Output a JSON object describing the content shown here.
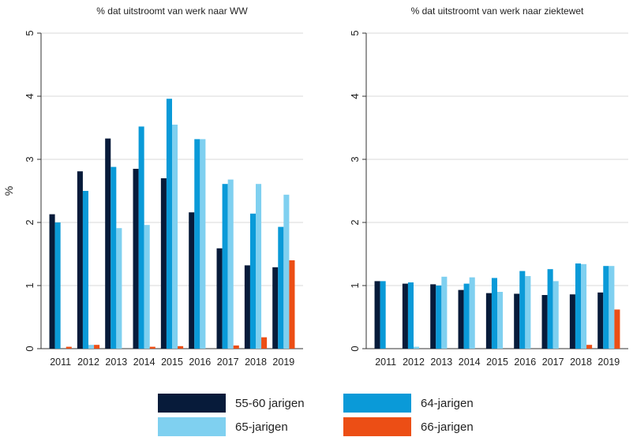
{
  "colors": {
    "series": [
      "#071b3a",
      "#0a9ad8",
      "#7fd0f0",
      "#ec4e15"
    ],
    "grid": "#d9d9d9",
    "axis": "#333333"
  },
  "chart_data": [
    {
      "type": "bar",
      "title": "% dat uitstroomt van werk naar WW",
      "ylabel": "%",
      "xlabel": "",
      "ylim": [
        0,
        5
      ],
      "yticks": [
        "0",
        "1",
        "2",
        "3",
        "4",
        "5"
      ],
      "grid": true,
      "categories": [
        "2011",
        "2012",
        "2013",
        "2014",
        "2015",
        "2016",
        "2017",
        "2018",
        "2019"
      ],
      "series": [
        {
          "name": "55-60 jarigen",
          "values": [
            2.13,
            2.81,
            3.33,
            2.85,
            2.7,
            2.16,
            1.59,
            1.32,
            1.29
          ]
        },
        {
          "name": "64-jarigen",
          "values": [
            2.0,
            2.5,
            2.88,
            3.52,
            3.96,
            3.32,
            2.61,
            2.14,
            1.93
          ]
        },
        {
          "name": "65-jarigen",
          "values": [
            0.0,
            0.06,
            1.91,
            1.96,
            3.55,
            3.32,
            2.68,
            2.61,
            2.44
          ]
        },
        {
          "name": "66-jarigen",
          "values": [
            0.03,
            0.06,
            0.0,
            0.03,
            0.04,
            0.0,
            0.05,
            0.18,
            1.4
          ]
        }
      ]
    },
    {
      "type": "bar",
      "title": "% dat uitstroomt van werk naar ziektewet",
      "ylabel": "",
      "xlabel": "",
      "ylim": [
        0,
        5
      ],
      "yticks": [
        "0",
        "1",
        "2",
        "3",
        "4",
        "5"
      ],
      "grid": true,
      "categories": [
        "2011",
        "2012",
        "2013",
        "2014",
        "2015",
        "2016",
        "2017",
        "2018",
        "2019"
      ],
      "series": [
        {
          "name": "55-60 jarigen",
          "values": [
            1.07,
            1.03,
            1.02,
            0.93,
            0.88,
            0.87,
            0.85,
            0.86,
            0.89
          ]
        },
        {
          "name": "64-jarigen",
          "values": [
            1.07,
            1.05,
            1.0,
            1.03,
            1.12,
            1.23,
            1.26,
            1.35,
            1.31
          ]
        },
        {
          "name": "65-jarigen",
          "values": [
            0.0,
            0.03,
            1.14,
            1.13,
            0.9,
            1.15,
            1.07,
            1.34,
            1.31
          ]
        },
        {
          "name": "66-jarigen",
          "values": [
            0.0,
            0.0,
            0.0,
            0.0,
            0.0,
            0.0,
            0.0,
            0.06,
            0.62
          ]
        }
      ]
    }
  ],
  "legend": [
    {
      "label": "55-60 jarigen"
    },
    {
      "label": "64-jarigen"
    },
    {
      "label": "65-jarigen"
    },
    {
      "label": "66-jarigen"
    }
  ]
}
